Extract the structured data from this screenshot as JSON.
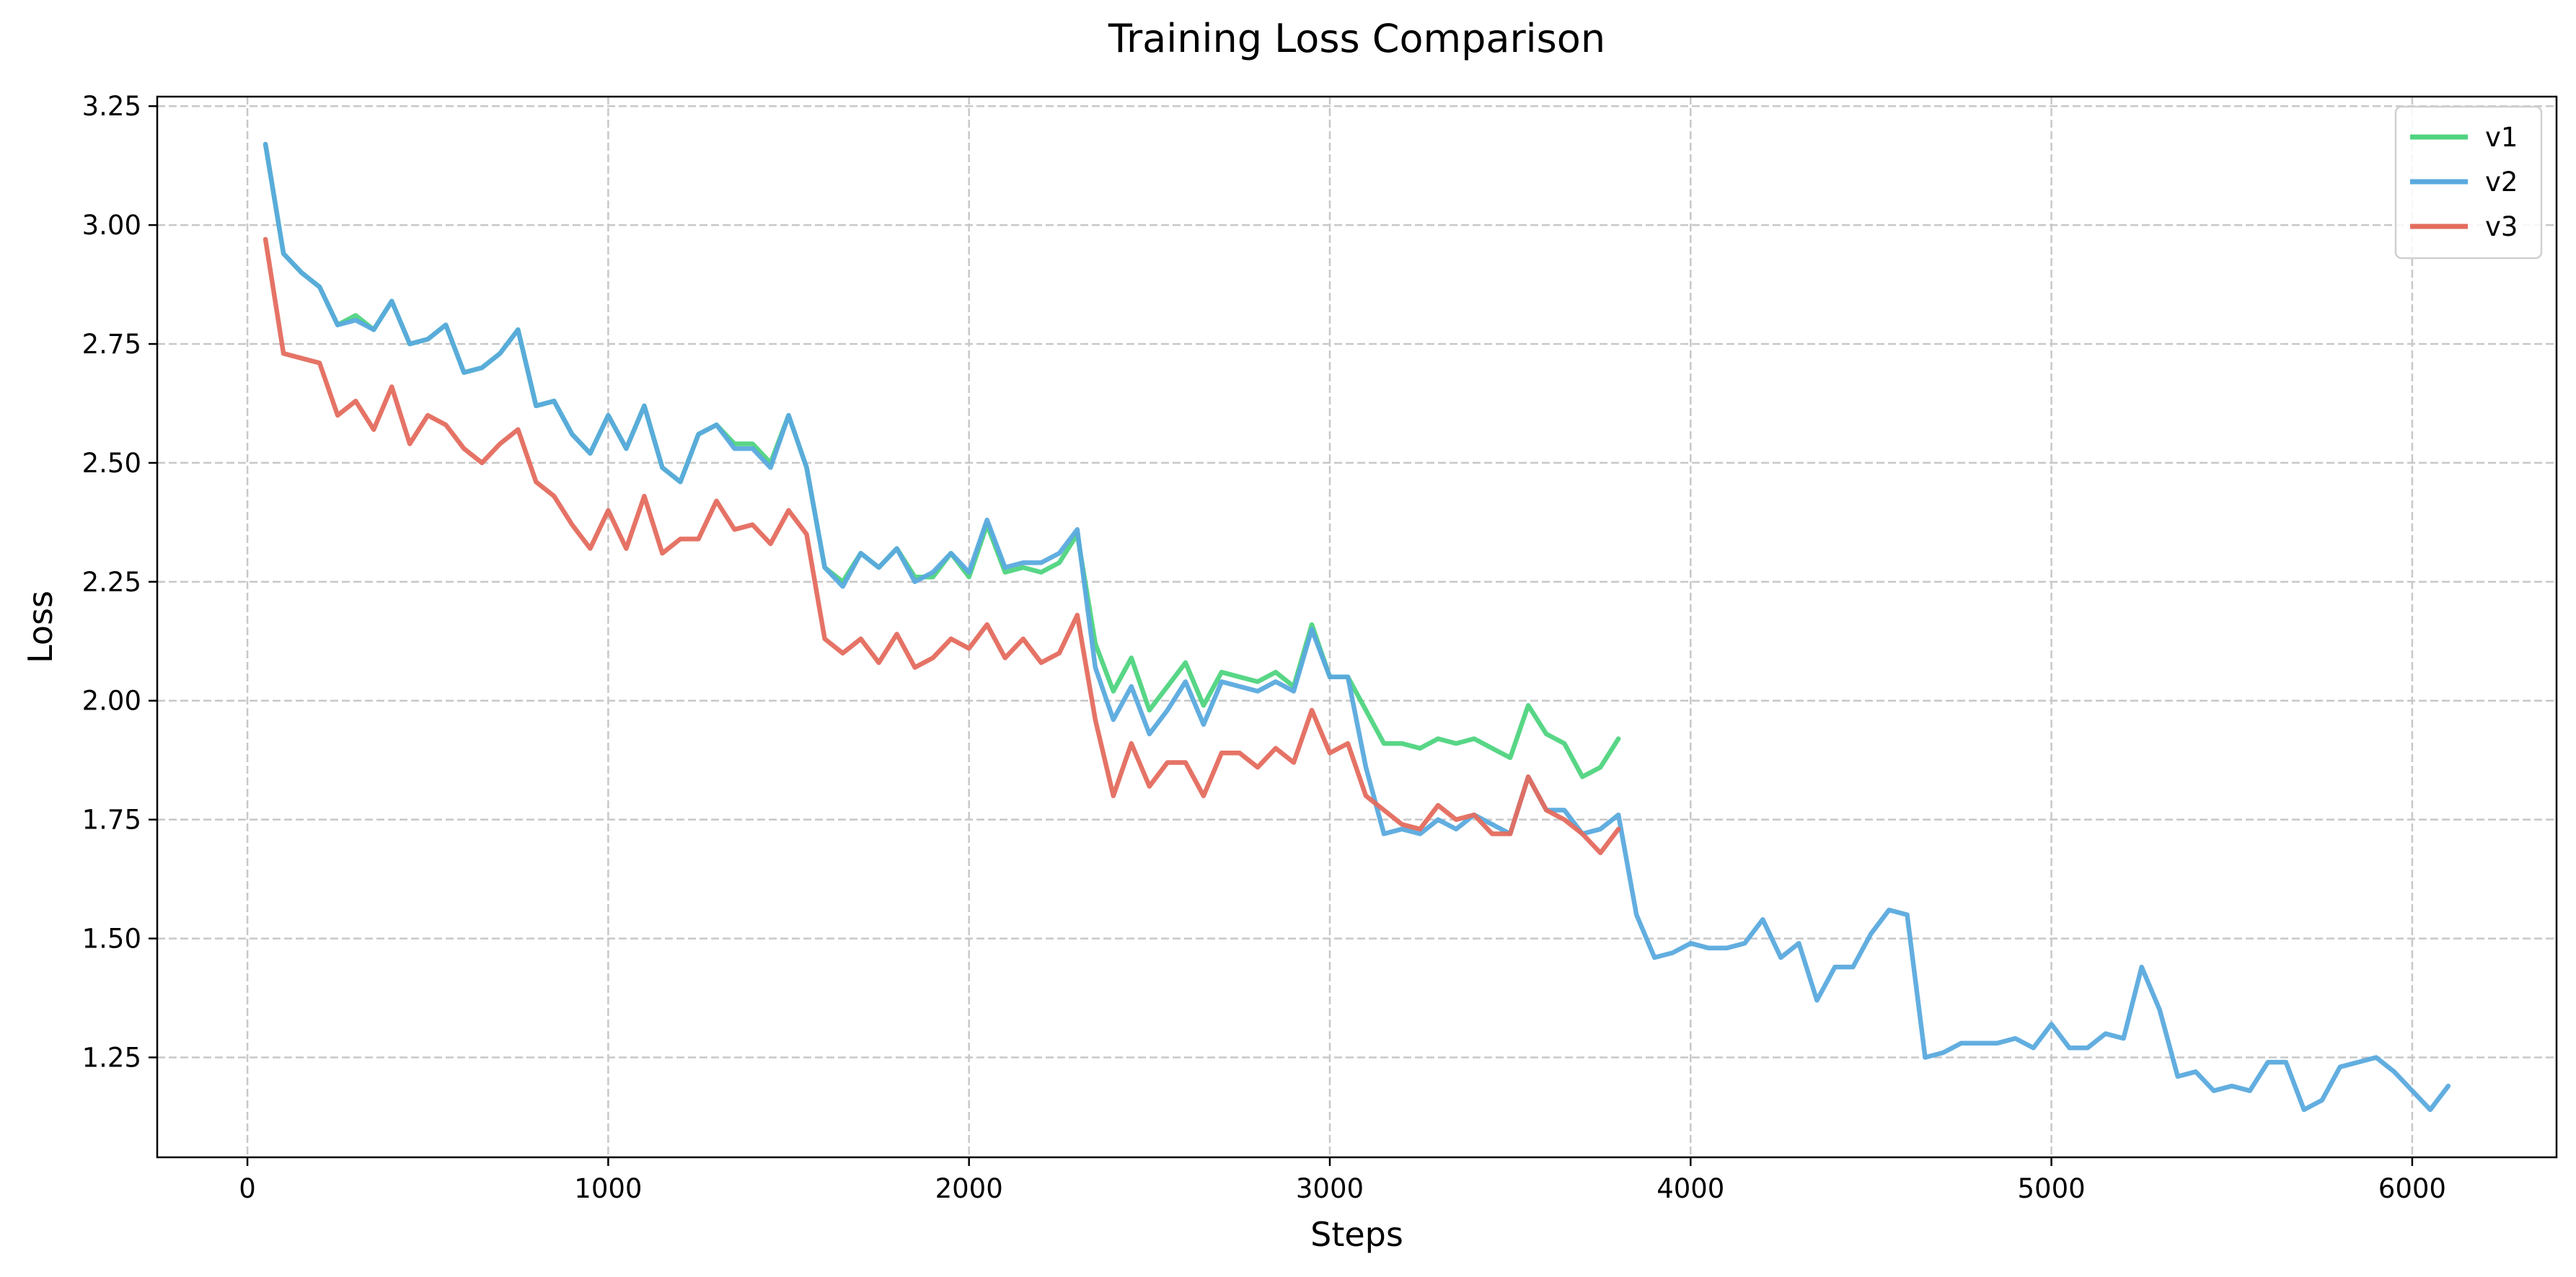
{
  "chart_data": {
    "type": "line",
    "title": "Training Loss Comparison",
    "xlabel": "Steps",
    "ylabel": "Loss",
    "xlim": [
      -250,
      6400
    ],
    "ylim": [
      1.04,
      3.27
    ],
    "xticks": [
      0,
      1000,
      2000,
      3000,
      4000,
      5000,
      6000
    ],
    "xtick_labels": [
      "0",
      "1000",
      "2000",
      "3000",
      "4000",
      "5000",
      "6000"
    ],
    "yticks": [
      1.25,
      1.5,
      1.75,
      2.0,
      2.25,
      2.5,
      2.75,
      3.0,
      3.25
    ],
    "ytick_labels": [
      "1.25",
      "1.50",
      "1.75",
      "2.00",
      "2.25",
      "2.50",
      "2.75",
      "3.00",
      "3.25"
    ],
    "grid": true,
    "legend_position": "top-right",
    "colors": {
      "v1": "#4fd47f",
      "v2": "#5aaade",
      "v3": "#e46c5e"
    },
    "series": [
      {
        "name": "v1",
        "x": [
          50,
          100,
          150,
          200,
          250,
          300,
          350,
          400,
          450,
          500,
          550,
          600,
          650,
          700,
          750,
          800,
          850,
          900,
          950,
          1000,
          1050,
          1100,
          1150,
          1200,
          1250,
          1300,
          1350,
          1400,
          1450,
          1500,
          1550,
          1600,
          1650,
          1700,
          1750,
          1800,
          1850,
          1900,
          1950,
          2000,
          2050,
          2100,
          2150,
          2200,
          2250,
          2300,
          2350,
          2400,
          2450,
          2500,
          2550,
          2600,
          2650,
          2700,
          2750,
          2800,
          2850,
          2900,
          2950,
          3000,
          3050,
          3100,
          3150,
          3200,
          3250,
          3300,
          3350,
          3400,
          3450,
          3500,
          3550,
          3600,
          3650,
          3700,
          3750,
          3800
        ],
        "y": [
          3.17,
          2.94,
          2.9,
          2.87,
          2.79,
          2.81,
          2.78,
          2.84,
          2.75,
          2.76,
          2.79,
          2.69,
          2.7,
          2.73,
          2.78,
          2.62,
          2.63,
          2.56,
          2.52,
          2.6,
          2.53,
          2.62,
          2.49,
          2.46,
          2.56,
          2.58,
          2.54,
          2.54,
          2.5,
          2.6,
          2.49,
          2.28,
          2.25,
          2.31,
          2.28,
          2.32,
          2.26,
          2.26,
          2.31,
          2.26,
          2.37,
          2.27,
          2.28,
          2.27,
          2.29,
          2.35,
          2.12,
          2.02,
          2.09,
          1.98,
          2.03,
          2.08,
          1.99,
          2.06,
          2.05,
          2.04,
          2.06,
          2.03,
          2.16,
          2.05,
          2.05,
          1.98,
          1.91,
          1.91,
          1.9,
          1.92,
          1.91,
          1.92,
          1.9,
          1.88,
          1.99,
          1.93,
          1.91,
          1.84,
          1.86,
          1.92
        ]
      },
      {
        "name": "v2",
        "x": [
          50,
          100,
          150,
          200,
          250,
          300,
          350,
          400,
          450,
          500,
          550,
          600,
          650,
          700,
          750,
          800,
          850,
          900,
          950,
          1000,
          1050,
          1100,
          1150,
          1200,
          1250,
          1300,
          1350,
          1400,
          1450,
          1500,
          1550,
          1600,
          1650,
          1700,
          1750,
          1800,
          1850,
          1900,
          1950,
          2000,
          2050,
          2100,
          2150,
          2200,
          2250,
          2300,
          2350,
          2400,
          2450,
          2500,
          2550,
          2600,
          2650,
          2700,
          2750,
          2800,
          2850,
          2900,
          2950,
          3000,
          3050,
          3100,
          3150,
          3200,
          3250,
          3300,
          3350,
          3400,
          3450,
          3500,
          3550,
          3600,
          3650,
          3700,
          3750,
          3800,
          3850,
          3900,
          3950,
          4000,
          4050,
          4100,
          4150,
          4200,
          4250,
          4300,
          4350,
          4400,
          4450,
          4500,
          4550,
          4600,
          4650,
          4700,
          4750,
          4800,
          4850,
          4900,
          4950,
          5000,
          5050,
          5100,
          5150,
          5200,
          5250,
          5300,
          5350,
          5400,
          5450,
          5500,
          5550,
          5600,
          5650,
          5700,
          5750,
          5800,
          5850,
          5900,
          5950,
          6000,
          6050,
          6100
        ],
        "y": [
          3.17,
          2.94,
          2.9,
          2.87,
          2.79,
          2.8,
          2.78,
          2.84,
          2.75,
          2.76,
          2.79,
          2.69,
          2.7,
          2.73,
          2.78,
          2.62,
          2.63,
          2.56,
          2.52,
          2.6,
          2.53,
          2.62,
          2.49,
          2.46,
          2.56,
          2.58,
          2.53,
          2.53,
          2.49,
          2.6,
          2.49,
          2.28,
          2.24,
          2.31,
          2.28,
          2.32,
          2.25,
          2.27,
          2.31,
          2.27,
          2.38,
          2.28,
          2.29,
          2.29,
          2.31,
          2.36,
          2.07,
          1.96,
          2.03,
          1.93,
          1.98,
          2.04,
          1.95,
          2.04,
          2.03,
          2.02,
          2.04,
          2.02,
          2.15,
          2.05,
          2.05,
          1.86,
          1.72,
          1.73,
          1.72,
          1.75,
          1.73,
          1.76,
          1.74,
          1.72,
          1.84,
          1.77,
          1.77,
          1.72,
          1.73,
          1.76,
          1.55,
          1.46,
          1.47,
          1.49,
          1.48,
          1.48,
          1.49,
          1.54,
          1.46,
          1.49,
          1.37,
          1.44,
          1.44,
          1.51,
          1.56,
          1.55,
          1.25,
          1.26,
          1.28,
          1.28,
          1.28,
          1.29,
          1.27,
          1.32,
          1.27,
          1.27,
          1.3,
          1.29,
          1.44,
          1.35,
          1.21,
          1.22,
          1.18,
          1.19,
          1.18,
          1.24,
          1.24,
          1.14,
          1.16,
          1.23,
          1.24,
          1.25,
          1.22,
          1.18,
          1.14,
          1.19
        ]
      },
      {
        "name": "v3",
        "x": [
          50,
          100,
          150,
          200,
          250,
          300,
          350,
          400,
          450,
          500,
          550,
          600,
          650,
          700,
          750,
          800,
          850,
          900,
          950,
          1000,
          1050,
          1100,
          1150,
          1200,
          1250,
          1300,
          1350,
          1400,
          1450,
          1500,
          1550,
          1600,
          1650,
          1700,
          1750,
          1800,
          1850,
          1900,
          1950,
          2000,
          2050,
          2100,
          2150,
          2200,
          2250,
          2300,
          2350,
          2400,
          2450,
          2500,
          2550,
          2600,
          2650,
          2700,
          2750,
          2800,
          2850,
          2900,
          2950,
          3000,
          3050,
          3100,
          3150,
          3200,
          3250,
          3300,
          3350,
          3400,
          3450,
          3500,
          3550,
          3600,
          3650,
          3700,
          3750,
          3800
        ],
        "y": [
          2.97,
          2.73,
          2.72,
          2.71,
          2.6,
          2.63,
          2.57,
          2.66,
          2.54,
          2.6,
          2.58,
          2.53,
          2.5,
          2.54,
          2.57,
          2.46,
          2.43,
          2.37,
          2.32,
          2.4,
          2.32,
          2.43,
          2.31,
          2.34,
          2.34,
          2.42,
          2.36,
          2.37,
          2.33,
          2.4,
          2.35,
          2.13,
          2.1,
          2.13,
          2.08,
          2.14,
          2.07,
          2.09,
          2.13,
          2.11,
          2.16,
          2.09,
          2.13,
          2.08,
          2.1,
          2.18,
          1.96,
          1.8,
          1.91,
          1.82,
          1.87,
          1.87,
          1.8,
          1.89,
          1.89,
          1.86,
          1.9,
          1.87,
          1.98,
          1.89,
          1.91,
          1.8,
          1.77,
          1.74,
          1.73,
          1.78,
          1.75,
          1.76,
          1.72,
          1.72,
          1.84,
          1.77,
          1.75,
          1.72,
          1.68,
          1.73
        ]
      }
    ]
  }
}
